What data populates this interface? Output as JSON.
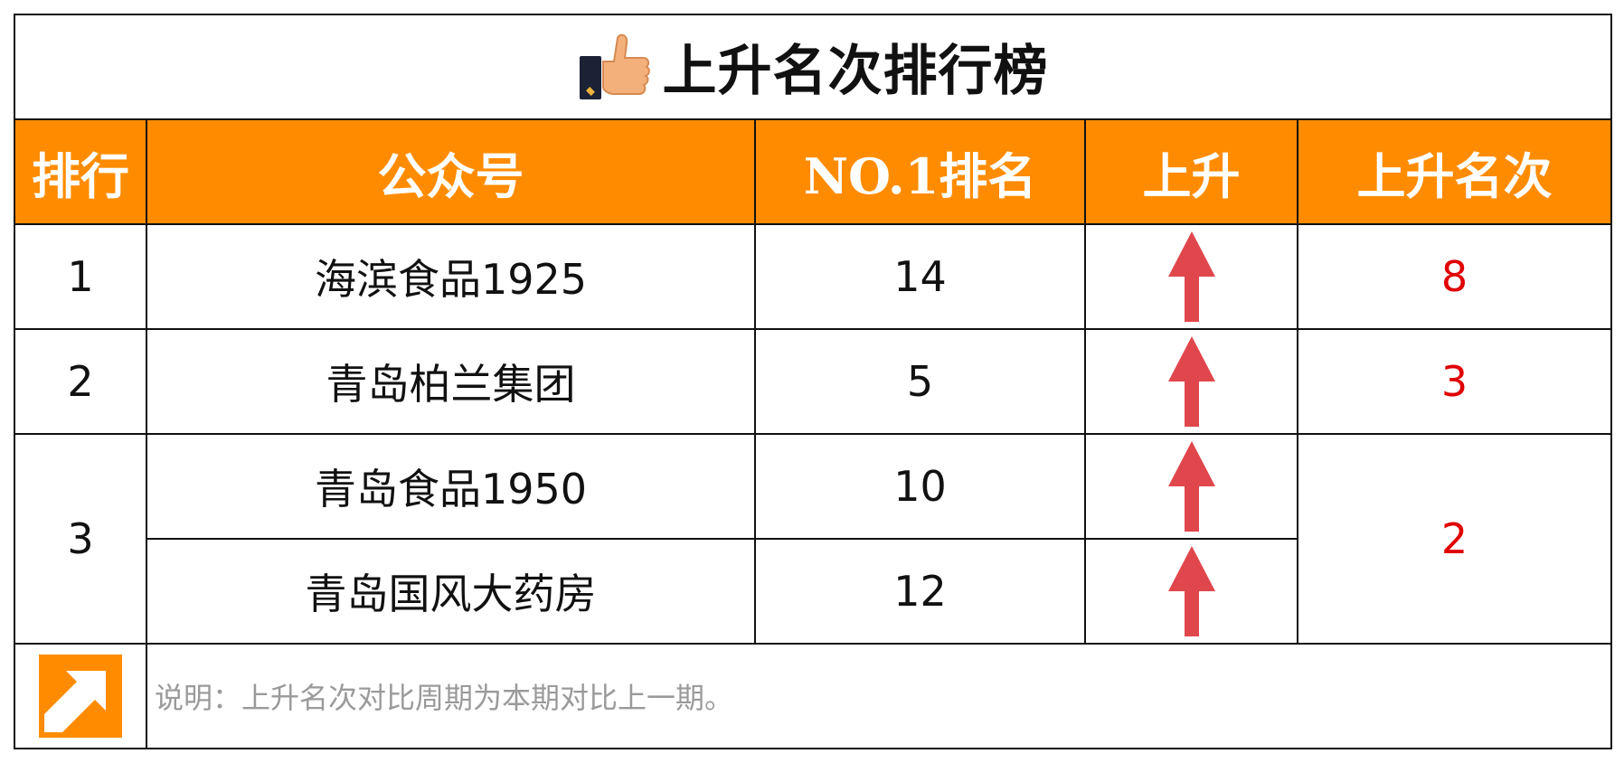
{
  "title": "上升名次排行榜",
  "header": {
    "rank": "排行",
    "account": "公众号",
    "no1_rank": "NO.1排名",
    "rise": "上升",
    "rise_count": "上升名次"
  },
  "rows": [
    {
      "rank": "1",
      "account": "海滨食品1925",
      "no1_rank": "14",
      "rise_count": "8"
    },
    {
      "rank": "2",
      "account": "青岛柏兰集团",
      "no1_rank": "5",
      "rise_count": "3"
    },
    {
      "rank": "3",
      "account": "青岛食品1950",
      "no1_rank": "10",
      "rise_count": "2"
    },
    {
      "rank": "3",
      "account": "青岛国风大药房",
      "no1_rank": "12",
      "rise_count": "2"
    }
  ],
  "note": "说明：上升名次对比周期为本期对比上一期。",
  "icons": {
    "title_icon": "thumbs-up-icon",
    "rise_icon": "up-arrow-icon",
    "note_icon": "diagonal-arrow-icon"
  },
  "colors": {
    "header_bg": "#ff8c00",
    "header_text": "#ffffff",
    "rise_arrow": "#e0474c",
    "rise_count_text": "#e00000",
    "note_text": "#9a9a9a"
  }
}
